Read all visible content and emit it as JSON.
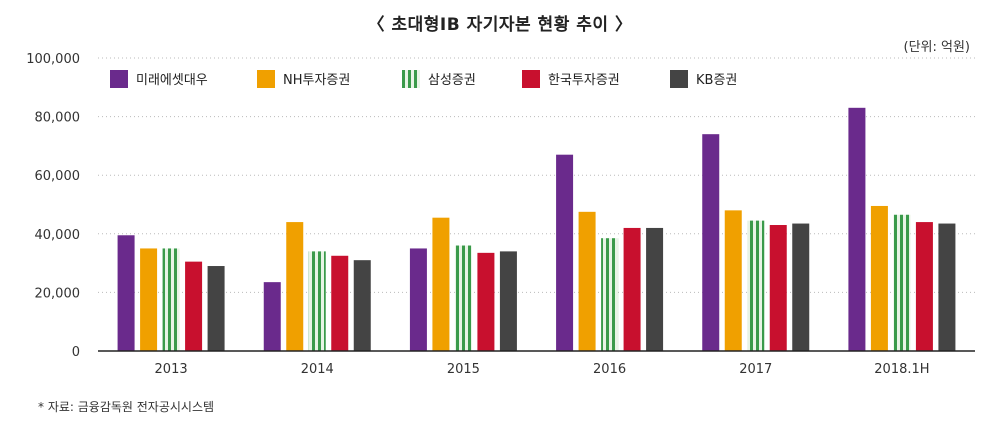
{
  "title": "〈 초대형IB 자기자본 현황 추이 〉",
  "unit": "(단위: 억원)",
  "source": "* 자료: 금융감독원 전자공시시스템",
  "chart_data": {
    "type": "bar",
    "categories": [
      "2013",
      "2014",
      "2015",
      "2016",
      "2017",
      "2018.1H"
    ],
    "ylim": [
      0,
      100000
    ],
    "yticks": [
      "0",
      "20,000",
      "40,000",
      "60,000",
      "80,000",
      "100,000"
    ],
    "ytick_values": [
      0,
      20000,
      40000,
      60000,
      80000,
      100000
    ],
    "legend_position": "top-left",
    "grid": true,
    "series": [
      {
        "name": "미래에셋대우",
        "color": "#6a2a8c",
        "pattern": "solid",
        "values": [
          39500,
          23500,
          35000,
          67000,
          74000,
          83000
        ]
      },
      {
        "name": "NH투자증권",
        "color": "#f0a000",
        "pattern": "solid",
        "values": [
          35000,
          44000,
          45500,
          47500,
          48000,
          49500
        ]
      },
      {
        "name": "삼성증권",
        "color": "#3a9a4a",
        "pattern": "striped",
        "values": [
          35000,
          34000,
          36000,
          38500,
          44500,
          46500
        ]
      },
      {
        "name": "한국투자증권",
        "color": "#c8102e",
        "pattern": "solid",
        "values": [
          30500,
          32500,
          33500,
          42000,
          43000,
          44000
        ]
      },
      {
        "name": "KB증권",
        "color": "#444444",
        "pattern": "solid",
        "values": [
          29000,
          31000,
          34000,
          42000,
          43500,
          43500
        ]
      }
    ]
  }
}
